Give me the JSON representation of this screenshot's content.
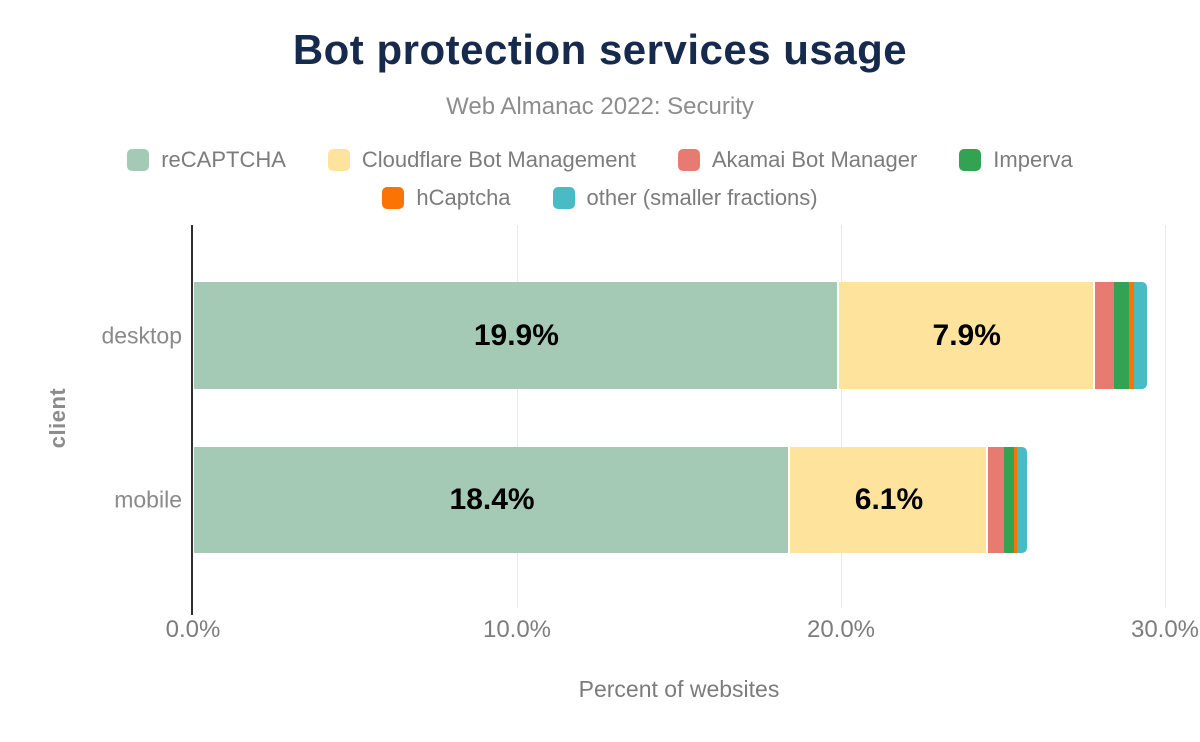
{
  "header": {
    "title": "Bot protection services usage",
    "subtitle": "Web Almanac 2022: Security"
  },
  "colors": {
    "background": "#ffffff",
    "title_text": "#162a4d",
    "subtitle_text": "#8d8d8d",
    "axis_text": "#7c7c7c",
    "gridline": "#e9e9e9",
    "axis_line": "#2f2f2f",
    "bar_value_text": "#000000"
  },
  "chart_data": {
    "type": "bar",
    "stacked": true,
    "orientation": "horizontal",
    "title": "Bot protection services usage",
    "subtitle": "Web Almanac 2022: Security",
    "xlabel": "Percent of websites",
    "ylabel": "client",
    "xlim": [
      0,
      30
    ],
    "grid": true,
    "legend_position": "top",
    "x_ticks": [
      {
        "value": 0,
        "label": "0.0%"
      },
      {
        "value": 10,
        "label": "10.0%"
      },
      {
        "value": 20,
        "label": "20.0%"
      },
      {
        "value": 30,
        "label": "30.0%"
      }
    ],
    "categories": [
      "desktop",
      "mobile"
    ],
    "series": [
      {
        "name": "reCAPTCHA",
        "color": "#a4c9b4",
        "values": [
          19.9,
          18.4
        ],
        "data_labels": [
          "19.9%",
          "18.4%"
        ]
      },
      {
        "name": "Cloudflare Bot Management",
        "color": "#fde39c",
        "values": [
          7.9,
          6.1
        ],
        "data_labels": [
          "7.9%",
          "6.1%"
        ]
      },
      {
        "name": "Akamai Bot Manager",
        "color": "#e87b71",
        "values": [
          0.6,
          0.5
        ],
        "data_labels": [
          "",
          ""
        ]
      },
      {
        "name": "Imperva",
        "color": "#33a252",
        "values": [
          0.45,
          0.3
        ],
        "data_labels": [
          "",
          ""
        ]
      },
      {
        "name": "hCaptcha",
        "color": "#fb7304",
        "values": [
          0.15,
          0.1
        ],
        "data_labels": [
          "",
          ""
        ]
      },
      {
        "name": "other (smaller fractions)",
        "color": "#49bbc5",
        "values": [
          0.4,
          0.3
        ],
        "data_labels": [
          "",
          ""
        ]
      }
    ],
    "legend_rows": [
      [
        0,
        1,
        2,
        3
      ],
      [
        4,
        5
      ]
    ]
  }
}
